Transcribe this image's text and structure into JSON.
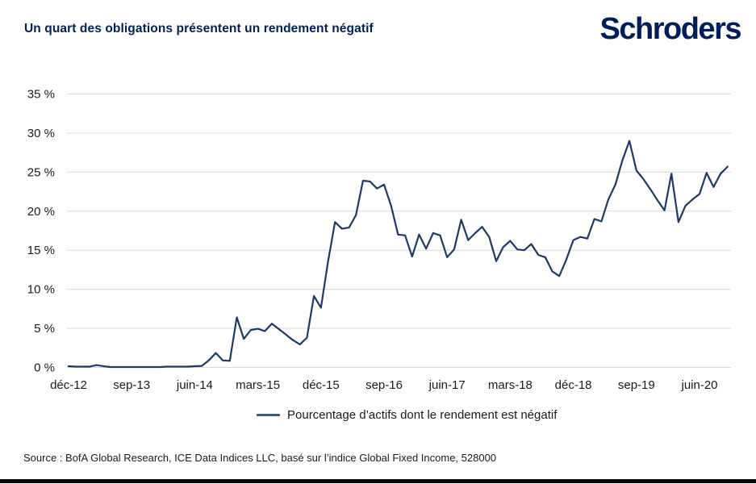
{
  "header": {
    "title": "Un quart des obligations présentent un rendement négatif",
    "logo": "Schroders"
  },
  "colors": {
    "title_navy": "#00205B",
    "logo_navy": "#001E5A",
    "line": "#1B3A66",
    "legend_swatch": "#3A5878",
    "grid": "#D9D9D9",
    "axis_text": "#1A1A1A"
  },
  "chart_data": {
    "type": "line",
    "title": "Un quart des obligations présentent un rendement négatif",
    "xlabel": "",
    "ylabel": "",
    "unit": "%",
    "ylim": [
      0,
      35
    ],
    "y_ticks": [
      0,
      5,
      10,
      15,
      20,
      25,
      30,
      35
    ],
    "y_tick_suffix": " %",
    "grid": "horizontal",
    "legend_position": "bottom",
    "x_tick_indices": [
      0,
      9,
      18,
      27,
      36,
      45,
      54,
      63,
      72,
      81,
      90
    ],
    "x_tick_labels": [
      "déc-12",
      "sep-13",
      "juin-14",
      "mars-15",
      "déc-15",
      "sep-16",
      "juin-17",
      "mars-18",
      "déc-18",
      "sep-19",
      "juin-20"
    ],
    "x": [
      "déc-12",
      "jan-13",
      "fév-13",
      "mars-13",
      "avr-13",
      "mai-13",
      "juin-13",
      "juil-13",
      "août-13",
      "sep-13",
      "oct-13",
      "nov-13",
      "déc-13",
      "jan-14",
      "fév-14",
      "mars-14",
      "avr-14",
      "mai-14",
      "juin-14",
      "juil-14",
      "août-14",
      "sep-14",
      "oct-14",
      "nov-14",
      "déc-14",
      "jan-15",
      "fév-15",
      "mars-15",
      "avr-15",
      "mai-15",
      "juin-15",
      "juil-15",
      "août-15",
      "sep-15",
      "oct-15",
      "nov-15",
      "déc-15",
      "jan-16",
      "fév-16",
      "mars-16",
      "avr-16",
      "mai-16",
      "juin-16",
      "juil-16",
      "août-16",
      "sep-16",
      "oct-16",
      "nov-16",
      "déc-16",
      "jan-17",
      "fév-17",
      "mars-17",
      "avr-17",
      "mai-17",
      "juin-17",
      "juil-17",
      "août-17",
      "sep-17",
      "oct-17",
      "nov-17",
      "déc-17",
      "jan-18",
      "fév-18",
      "mars-18",
      "avr-18",
      "mai-18",
      "juin-18",
      "juil-18",
      "août-18",
      "sep-18",
      "oct-18",
      "nov-18",
      "déc-18",
      "jan-19",
      "fév-19",
      "mars-19",
      "avr-19",
      "mai-19",
      "juin-19",
      "juil-19",
      "août-19",
      "sep-19",
      "oct-19",
      "nov-19",
      "déc-19",
      "jan-20",
      "fév-20",
      "mars-20",
      "avr-20",
      "mai-20",
      "juin-20",
      "juil-20",
      "août-20",
      "sep-20",
      "oct-20"
    ],
    "series": [
      {
        "name": "Pourcentage d’actifs dont le rendement est négatif",
        "values": [
          0.15,
          0.1,
          0.1,
          0.1,
          0.3,
          0.15,
          0.05,
          0.05,
          0.05,
          0.05,
          0.05,
          0.05,
          0.05,
          0.05,
          0.1,
          0.1,
          0.1,
          0.1,
          0.15,
          0.2,
          0.9,
          1.85,
          0.9,
          0.85,
          6.4,
          3.65,
          4.8,
          4.95,
          4.65,
          5.6,
          4.9,
          4.2,
          3.5,
          2.95,
          3.8,
          9.15,
          7.65,
          13.5,
          18.6,
          17.75,
          17.9,
          19.5,
          23.9,
          23.8,
          22.9,
          23.4,
          20.7,
          17.0,
          16.9,
          14.2,
          17.0,
          15.2,
          17.2,
          16.9,
          14.1,
          15.1,
          18.9,
          16.3,
          17.2,
          18.0,
          16.7,
          13.6,
          15.4,
          16.2,
          15.1,
          15.0,
          15.8,
          14.4,
          14.1,
          12.3,
          11.7,
          13.8,
          16.3,
          16.7,
          16.5,
          19.0,
          18.7,
          21.5,
          23.4,
          26.5,
          29.0,
          25.2,
          24.1,
          22.8,
          21.4,
          20.1,
          24.8,
          18.6,
          20.7,
          21.5,
          22.2,
          24.9,
          23.1,
          24.8,
          25.7
        ]
      }
    ]
  },
  "footer": {
    "source": "Source : BofA Global Research, ICE Data Indices LLC, basé sur l’indice Global Fixed Income, 528000"
  }
}
